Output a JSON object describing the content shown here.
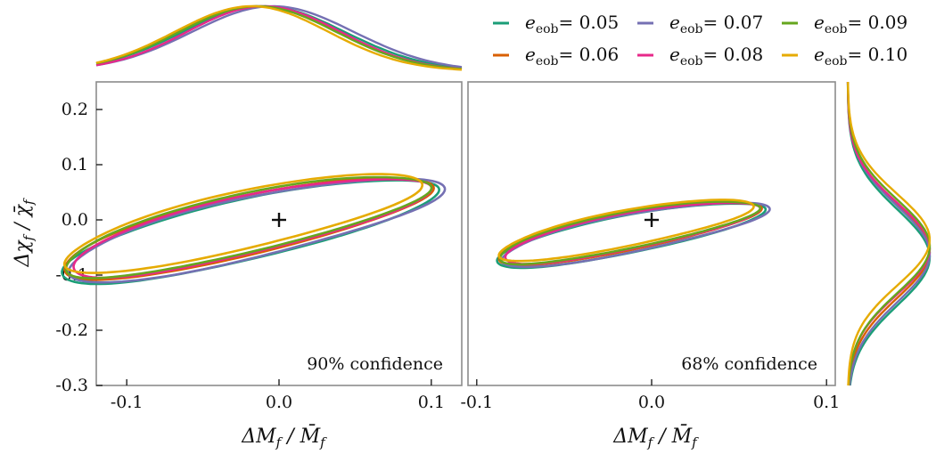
{
  "chart_data": {
    "type": "contour",
    "series": [
      {
        "name": "e_eob = 0.05",
        "sub": "eob",
        "value": "0.05",
        "color": "#1b9e77"
      },
      {
        "name": "e_eob = 0.06",
        "sub": "eob",
        "value": "0.06",
        "color": "#d95f02"
      },
      {
        "name": "e_eob = 0.07",
        "sub": "eob",
        "value": "0.07",
        "color": "#7570b3"
      },
      {
        "name": "e_eob = 0.08",
        "sub": "eob",
        "value": "0.08",
        "color": "#e7298a"
      },
      {
        "name": "e_eob = 0.09",
        "sub": "eob",
        "value": "0.09",
        "color": "#66a61e"
      },
      {
        "name": "e_eob = 0.10",
        "sub": "eob",
        "value": "0.10",
        "color": "#e6ab02"
      }
    ],
    "panels": [
      {
        "annotation": "90% confidence",
        "level": 0.9,
        "xlim": [
          -0.12,
          0.12
        ],
        "ylim": [
          -0.3,
          0.25
        ],
        "xticks": [
          "-0.1",
          "0.0",
          "0.1"
        ],
        "xtick_values": [
          -0.1,
          0.0,
          0.1
        ],
        "xlabel": "ΔM_f / M̄_f",
        "ylabel": "Δχ_f / χ̄_f",
        "yticks": [
          "-0.3",
          "-0.2",
          "-0.1",
          "0.0",
          "0.1",
          "0.2"
        ],
        "ytick_values": [
          -0.3,
          -0.2,
          -0.1,
          0.0,
          0.1,
          0.2
        ],
        "marker": [
          0.0,
          0.0
        ],
        "contour_scale": 1.0
      },
      {
        "annotation": "68% confidence",
        "level": 0.68,
        "xlim": [
          -0.105,
          0.105
        ],
        "ylim": [
          -0.3,
          0.25
        ],
        "xticks": [
          "-0.1",
          "0.0",
          "0.1"
        ],
        "xtick_values": [
          -0.1,
          0.0,
          0.1
        ],
        "xlabel": "ΔM_f / M̄_f",
        "marker": [
          0.0,
          0.0
        ],
        "contour_scale": 0.62
      }
    ],
    "contour_shape": {
      "center": [
        -0.018,
        -0.02
      ],
      "semi_major": 0.145,
      "semi_minor": 0.046,
      "angle_deg": 35.4
    },
    "series_offsets": [
      {
        "dx": 0.0,
        "dy": -0.004,
        "s": 1.02,
        "w": 0.01
      },
      {
        "dx": -0.002,
        "dy": 0.002,
        "s": 1.0,
        "w": 0.008
      },
      {
        "dx": 0.003,
        "dy": -0.001,
        "s": 1.02,
        "w": 0.012
      },
      {
        "dx": 0.0,
        "dy": 0.004,
        "s": 0.97,
        "w": 0.009
      },
      {
        "dx": -0.002,
        "dy": 0.006,
        "s": 0.99,
        "w": 0.011
      },
      {
        "dx": -0.004,
        "dy": 0.012,
        "s": 0.97,
        "w": 0.007
      }
    ],
    "marginals": {
      "x": {
        "mean": -0.01,
        "sd": 0.052
      },
      "y": {
        "mean": -0.06,
        "sd": 0.085
      }
    }
  }
}
